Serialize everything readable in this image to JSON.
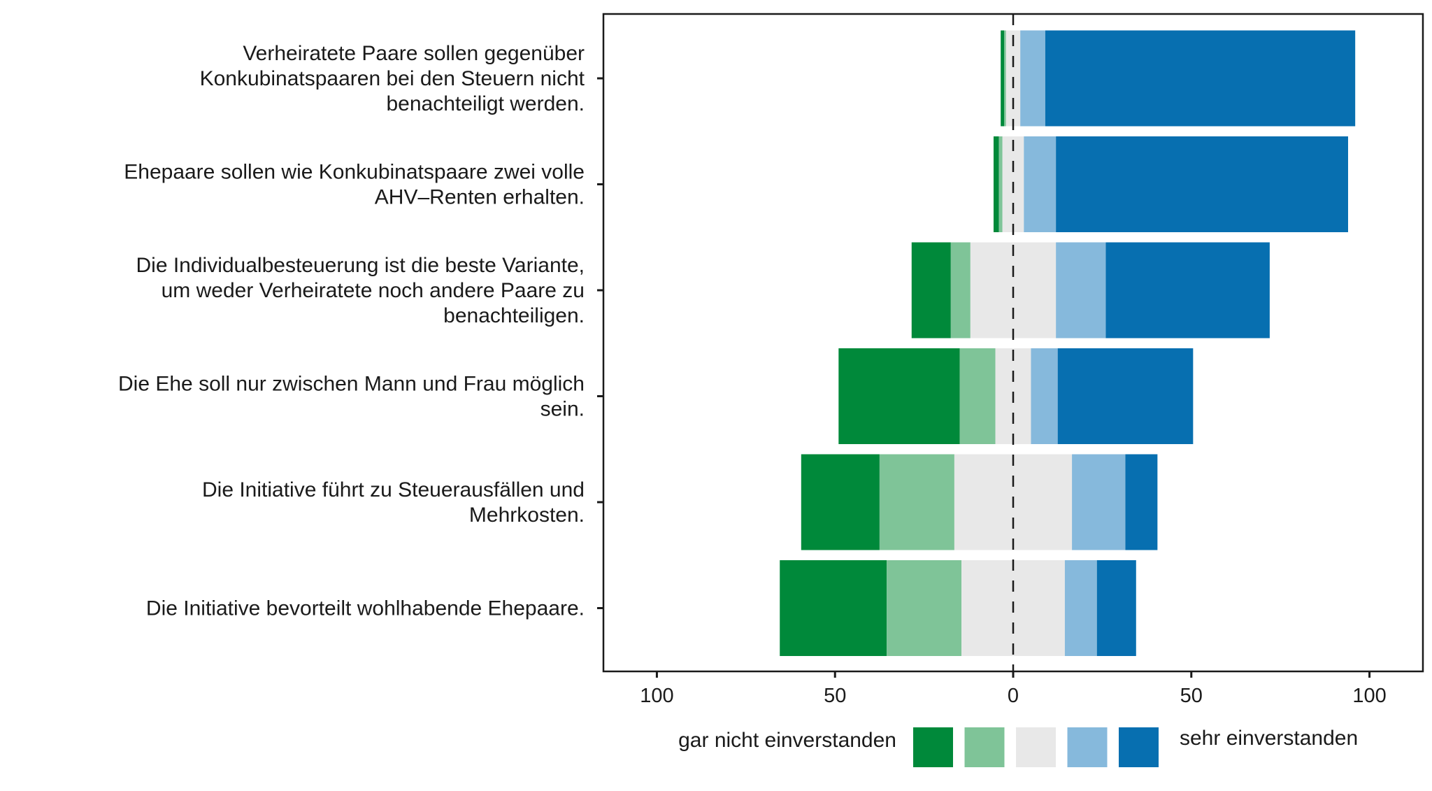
{
  "chart_data": {
    "type": "bar",
    "orientation": "horizontal",
    "stacked": "diverging",
    "center": 0,
    "xlim": [
      -115,
      115
    ],
    "x_ticks": [
      -100,
      -50,
      0,
      50,
      100
    ],
    "x_tick_labels": [
      "100",
      "50",
      "0",
      "50",
      "100"
    ],
    "categories": [
      [
        "Verheiratete Paare sollen gegenüber",
        "Konkubinatspaaren bei den Steuern nicht",
        "benachteiligt werden."
      ],
      [
        "Ehepaare sollen wie Konkubinatspaare zwei volle",
        "AHV–Renten erhalten."
      ],
      [
        "Die Individualbesteuerung ist die beste Variante,",
        "um weder Verheiratete noch andere Paare zu",
        "benachteiligen."
      ],
      [
        "Die Ehe soll nur zwischen Mann und Frau möglich",
        "sein."
      ],
      [
        "Die Initiative führt zu Steuerausfällen und",
        "Mehrkosten."
      ],
      [
        "Die Initiative bevorteilt wohlhabende Ehepaare."
      ]
    ],
    "series": [
      {
        "key": "s1",
        "color": "#00893a",
        "side": "negative",
        "values": [
          1,
          1.5,
          11,
          34,
          22,
          30
        ]
      },
      {
        "key": "s2",
        "color": "#7fc498",
        "side": "negative",
        "values": [
          0.5,
          1,
          5.5,
          10,
          21,
          21
        ]
      },
      {
        "key": "s3",
        "color": "#e8e8e8",
        "side": "split",
        "values": [
          4,
          6,
          24,
          10,
          33,
          29
        ]
      },
      {
        "key": "s4",
        "color": "#86b9dc",
        "side": "positive",
        "values": [
          7,
          9,
          14,
          7.5,
          15,
          9
        ]
      },
      {
        "key": "s5",
        "color": "#076fb0",
        "side": "positive",
        "values": [
          87,
          82,
          46,
          38,
          9,
          11
        ]
      }
    ],
    "legend": {
      "placement": "bottom",
      "left_label": "gar nicht einverstanden",
      "right_label": "sehr einverstanden"
    },
    "grid": false
  }
}
